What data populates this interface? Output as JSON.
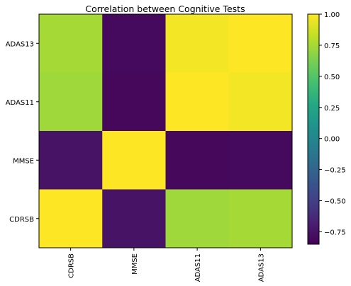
{
  "chart_data": {
    "type": "heatmap",
    "title": "Correlation between Cognitive Tests",
    "x_categories": [
      "CDRSB",
      "MMSE",
      "ADAS11",
      "ADAS13"
    ],
    "y_categories": [
      "ADAS13",
      "ADAS11",
      "MMSE",
      "CDRSB"
    ],
    "matrix": [
      [
        0.75,
        -0.8,
        0.97,
        1.0
      ],
      [
        0.73,
        -0.81,
        1.0,
        0.97
      ],
      [
        -0.75,
        1.0,
        -0.81,
        -0.8
      ],
      [
        1.0,
        -0.75,
        0.73,
        0.75
      ]
    ],
    "colormap": "viridis",
    "vmin": -0.85,
    "vmax": 1.0,
    "colorbar_ticks": [
      -0.75,
      -0.5,
      -0.25,
      0.0,
      0.25,
      0.5,
      0.75,
      1.0
    ],
    "colorbar_tick_labels": [
      "−0.75",
      "−0.50",
      "−0.25",
      "0.00",
      "0.25",
      "0.50",
      "0.75",
      "1.00"
    ]
  }
}
